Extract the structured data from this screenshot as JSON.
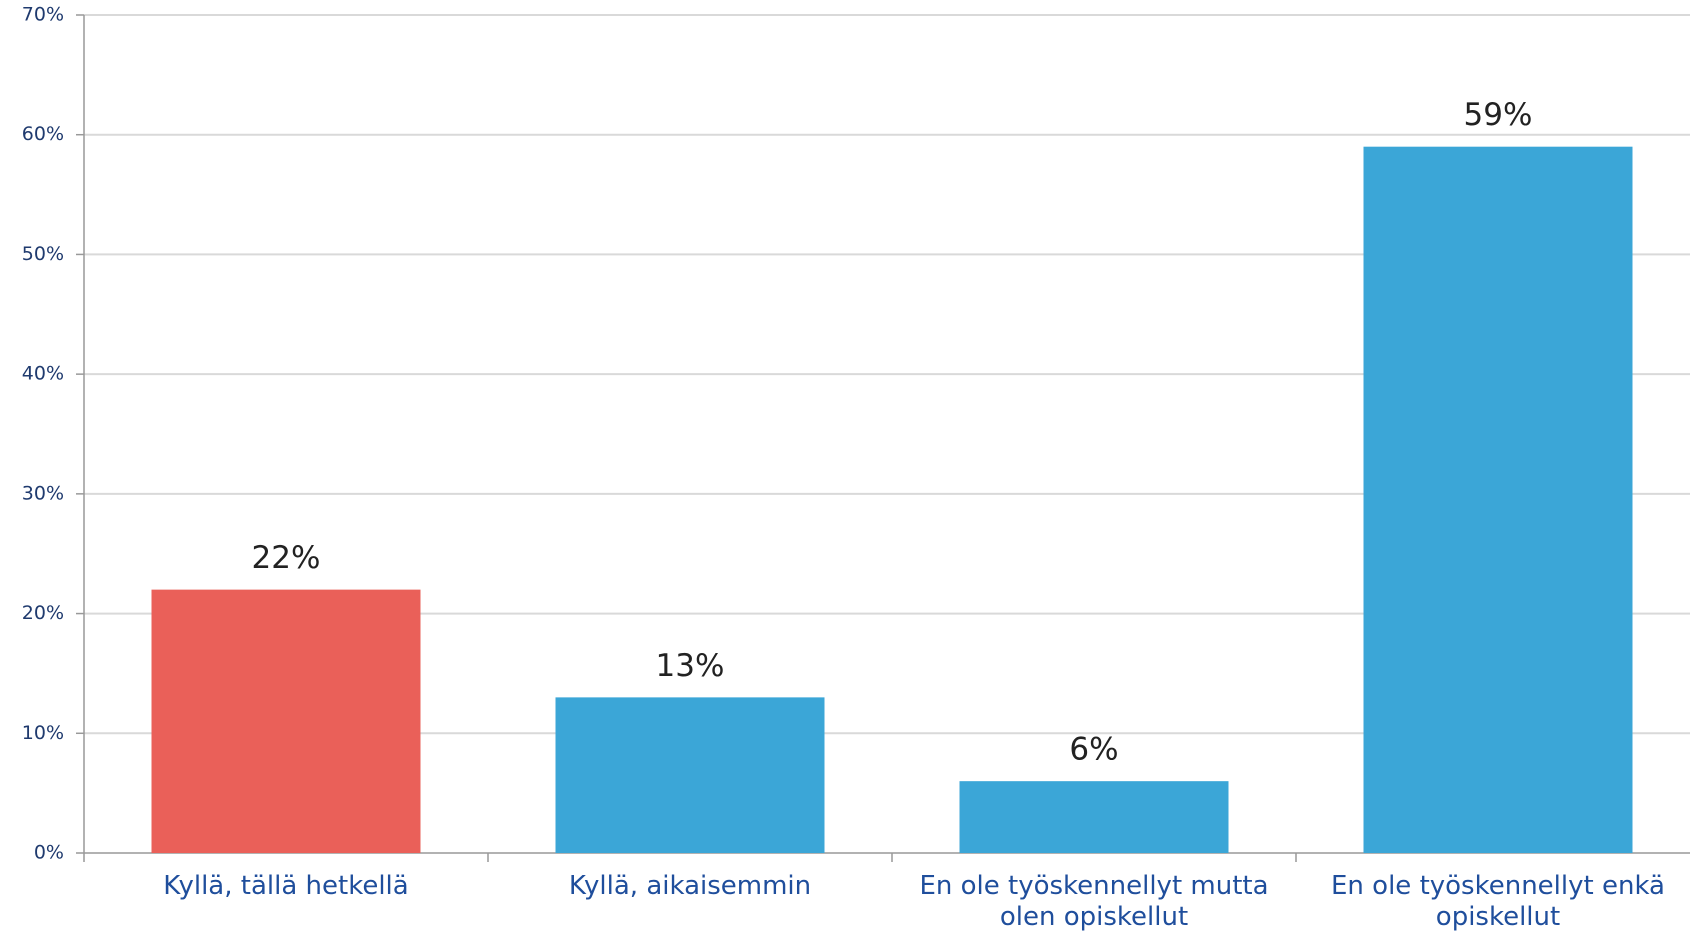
{
  "chart_data": {
    "type": "bar",
    "categories": [
      "Kyllä, tällä hetkellä",
      "Kyllä, aikaisemmin",
      "En ole työskennellyt mutta olen opiskellut",
      "En ole työskennellyt enkä opiskellut"
    ],
    "values": [
      22,
      13,
      6,
      59
    ],
    "value_labels": [
      "22%",
      "13%",
      "6%",
      "59%"
    ],
    "colors": [
      "#ea6059",
      "#3ba6d7",
      "#3ba6d7",
      "#3ba6d7"
    ],
    "ylim": [
      0,
      70
    ],
    "yticks": [
      {
        "value": 0,
        "label": "0%"
      },
      {
        "value": 10,
        "label": "10%"
      },
      {
        "value": 20,
        "label": "20%"
      },
      {
        "value": 30,
        "label": "30%"
      },
      {
        "value": 40,
        "label": "40%"
      },
      {
        "value": 50,
        "label": "50%"
      },
      {
        "value": 60,
        "label": "60%"
      },
      {
        "value": 70,
        "label": "70%"
      }
    ],
    "grid": true
  }
}
